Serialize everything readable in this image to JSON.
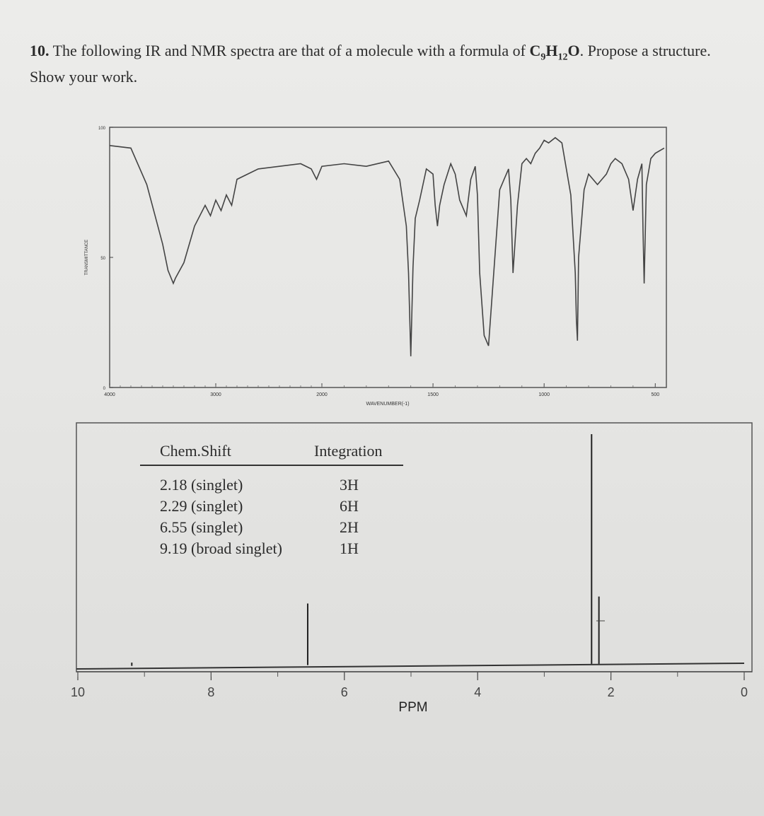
{
  "question": {
    "number": "10.",
    "text_before": "The following IR and NMR spectra are that of a molecule with a formula of",
    "formula": {
      "c": "C",
      "c_sub": "9",
      "h": "H",
      "h_sub": "12",
      "o": "O"
    },
    "text_after": ". Propose a structure. Show your work."
  },
  "chart_data": [
    {
      "type": "line",
      "ylabel": "TRANSMITTANCE",
      "xlabel": "WAVENUMBER(-1)",
      "x_ticks": [
        "4000",
        "3000",
        "2000",
        "1500",
        "1000",
        "500"
      ],
      "y_ticks": [
        "100",
        "50",
        "0"
      ],
      "xlim": [
        4000,
        450
      ],
      "ylim": [
        0,
        100
      ],
      "series": [
        {
          "x": [
            4000,
            3800,
            3650,
            3500,
            3450,
            3400,
            3380,
            3300,
            3200,
            3100,
            3050,
            3000,
            2950,
            2900,
            2850,
            2800,
            2600,
            2400,
            2200,
            2100,
            2050,
            2000,
            1900,
            1800,
            1700,
            1650,
            1620,
            1610,
            1600,
            1590,
            1580,
            1560,
            1530,
            1500,
            1490,
            1480,
            1470,
            1450,
            1420,
            1400,
            1380,
            1350,
            1330,
            1310,
            1300,
            1290,
            1270,
            1250,
            1230,
            1200,
            1180,
            1160,
            1150,
            1140,
            1120,
            1100,
            1080,
            1060,
            1040,
            1020,
            1000,
            980,
            950,
            920,
            900,
            880,
            860,
            855,
            850,
            845,
            820,
            800,
            760,
            740,
            720,
            700,
            680,
            650,
            620,
            600,
            580,
            560,
            555,
            550,
            540,
            520,
            500,
            460
          ],
          "y": [
            93,
            92,
            78,
            55,
            45,
            40,
            42,
            48,
            62,
            70,
            66,
            72,
            68,
            74,
            70,
            80,
            84,
            85,
            86,
            84,
            80,
            85,
            86,
            85,
            87,
            80,
            62,
            44,
            12,
            46,
            65,
            72,
            84,
            82,
            70,
            62,
            70,
            78,
            86,
            82,
            72,
            66,
            80,
            85,
            74,
            44,
            20,
            16,
            40,
            76,
            80,
            84,
            72,
            44,
            70,
            86,
            88,
            86,
            90,
            92,
            95,
            94,
            96,
            94,
            84,
            74,
            44,
            26,
            18,
            50,
            76,
            82,
            78,
            80,
            82,
            86,
            88,
            86,
            80,
            68,
            80,
            86,
            60,
            40,
            78,
            88,
            90,
            92
          ]
        }
      ]
    },
    {
      "type": "line",
      "xlabel": "PPM",
      "x_ticks": [
        "10",
        "8",
        "6",
        "4",
        "2",
        "0"
      ],
      "xlim": [
        10,
        0
      ],
      "peaks": [
        {
          "shift": 9.19,
          "height": 1.5
        },
        {
          "shift": 6.55,
          "height": 27
        },
        {
          "shift": 2.29,
          "height": 100
        },
        {
          "shift": 2.18,
          "height": 30
        }
      ],
      "table": {
        "headers": [
          "Chem.Shift",
          "Integration"
        ],
        "rows": [
          [
            "2.18 (singlet)",
            "3H"
          ],
          [
            "2.29 (singlet)",
            "6H"
          ],
          [
            "6.55 (singlet)",
            "2H"
          ],
          [
            "9.19 (broad singlet)",
            "1H"
          ]
        ]
      }
    }
  ]
}
